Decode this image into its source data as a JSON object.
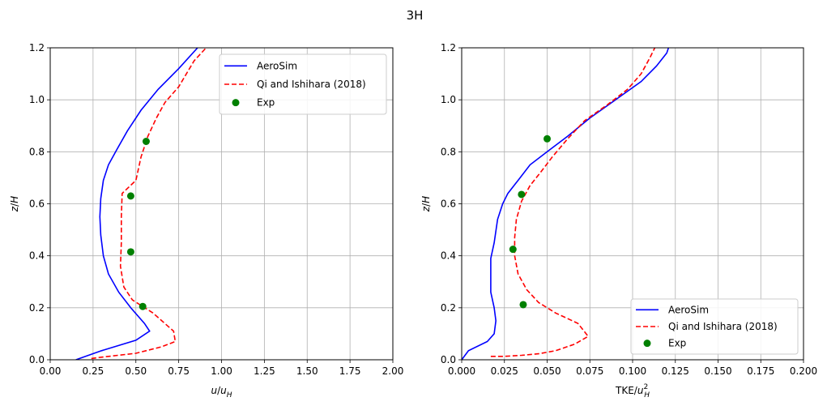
{
  "figure": {
    "suptitle": "3H"
  },
  "chart_data": [
    {
      "type": "line",
      "xlabel": "u/u_H",
      "ylabel": "z/H",
      "xlim": [
        0,
        2.0
      ],
      "ylim": [
        0,
        1.2
      ],
      "xticks": [
        "0.00",
        "0.25",
        "0.50",
        "0.75",
        "1.00",
        "1.25",
        "1.50",
        "1.75",
        "2.00"
      ],
      "xtick_values": [
        0,
        0.25,
        0.5,
        0.75,
        1.0,
        1.25,
        1.5,
        1.75,
        2.0
      ],
      "yticks": [
        "0.0",
        "0.2",
        "0.4",
        "0.6",
        "0.8",
        "1.0",
        "1.2"
      ],
      "ytick_values": [
        0,
        0.2,
        0.4,
        0.6,
        0.8,
        1.0,
        1.2
      ],
      "grid": true,
      "legend_position": "top-right",
      "series": [
        {
          "name": "AeroSim",
          "style": "solid",
          "color": "#0000ff",
          "points": [
            [
              0.15,
              0.0
            ],
            [
              0.3,
              0.035
            ],
            [
              0.5,
              0.075
            ],
            [
              0.58,
              0.11
            ],
            [
              0.55,
              0.14
            ],
            [
              0.47,
              0.2
            ],
            [
              0.4,
              0.26
            ],
            [
              0.34,
              0.33
            ],
            [
              0.31,
              0.4
            ],
            [
              0.295,
              0.48
            ],
            [
              0.29,
              0.55
            ],
            [
              0.295,
              0.62
            ],
            [
              0.31,
              0.69
            ],
            [
              0.34,
              0.75
            ],
            [
              0.39,
              0.81
            ],
            [
              0.45,
              0.88
            ],
            [
              0.53,
              0.96
            ],
            [
              0.63,
              1.04
            ],
            [
              0.75,
              1.12
            ],
            [
              0.86,
              1.2
            ]
          ]
        },
        {
          "name": "Qi and Ishihara (2018)",
          "style": "dashed",
          "color": "#ff0000",
          "points": [
            [
              0.24,
              0.005
            ],
            [
              0.3,
              0.01
            ],
            [
              0.5,
              0.025
            ],
            [
              0.65,
              0.05
            ],
            [
              0.73,
              0.07
            ],
            [
              0.72,
              0.11
            ],
            [
              0.6,
              0.18
            ],
            [
              0.48,
              0.23
            ],
            [
              0.43,
              0.28
            ],
            [
              0.41,
              0.36
            ],
            [
              0.415,
              0.45
            ],
            [
              0.415,
              0.55
            ],
            [
              0.42,
              0.64
            ],
            [
              0.5,
              0.69
            ],
            [
              0.53,
              0.78
            ],
            [
              0.57,
              0.86
            ],
            [
              0.62,
              0.93
            ],
            [
              0.67,
              0.99
            ],
            [
              0.75,
              1.05
            ],
            [
              0.84,
              1.15
            ],
            [
              0.91,
              1.2
            ]
          ]
        },
        {
          "name": "Exp",
          "style": "marker",
          "color": "#008000",
          "points": [
            [
              0.54,
              0.205
            ],
            [
              0.47,
              0.415
            ],
            [
              0.47,
              0.63
            ],
            [
              0.56,
              0.84
            ]
          ]
        }
      ]
    },
    {
      "type": "line",
      "xlabel": "TKE/u_H^2",
      "ylabel": "z/H",
      "xlim": [
        0,
        0.2
      ],
      "ylim": [
        0,
        1.2
      ],
      "xticks": [
        "0.000",
        "0.025",
        "0.050",
        "0.075",
        "0.100",
        "0.125",
        "0.150",
        "0.175",
        "0.200"
      ],
      "xtick_values": [
        0,
        0.025,
        0.05,
        0.075,
        0.1,
        0.125,
        0.15,
        0.175,
        0.2
      ],
      "yticks": [
        "0.0",
        "0.2",
        "0.4",
        "0.6",
        "0.8",
        "1.0",
        "1.2"
      ],
      "ytick_values": [
        0,
        0.2,
        0.4,
        0.6,
        0.8,
        1.0,
        1.2
      ],
      "grid": true,
      "legend_position": "bottom-right",
      "series": [
        {
          "name": "AeroSim",
          "style": "solid",
          "color": "#0000ff",
          "points": [
            [
              0.0,
              0.0
            ],
            [
              0.004,
              0.035
            ],
            [
              0.015,
              0.07
            ],
            [
              0.019,
              0.1
            ],
            [
              0.02,
              0.15
            ],
            [
              0.019,
              0.2
            ],
            [
              0.017,
              0.26
            ],
            [
              0.017,
              0.33
            ],
            [
              0.017,
              0.39
            ],
            [
              0.019,
              0.45
            ],
            [
              0.021,
              0.54
            ],
            [
              0.024,
              0.6
            ],
            [
              0.027,
              0.64
            ],
            [
              0.033,
              0.69
            ],
            [
              0.04,
              0.75
            ],
            [
              0.05,
              0.8
            ],
            [
              0.062,
              0.86
            ],
            [
              0.075,
              0.93
            ],
            [
              0.09,
              1.0
            ],
            [
              0.105,
              1.07
            ],
            [
              0.114,
              1.13
            ],
            [
              0.12,
              1.18
            ],
            [
              0.121,
              1.2
            ]
          ]
        },
        {
          "name": "Qi and Ishihara (2018)",
          "style": "dashed",
          "color": "#ff0000",
          "points": [
            [
              0.017,
              0.013
            ],
            [
              0.025,
              0.013
            ],
            [
              0.035,
              0.017
            ],
            [
              0.045,
              0.023
            ],
            [
              0.055,
              0.035
            ],
            [
              0.066,
              0.06
            ],
            [
              0.074,
              0.09
            ],
            [
              0.068,
              0.14
            ],
            [
              0.055,
              0.18
            ],
            [
              0.045,
              0.22
            ],
            [
              0.038,
              0.27
            ],
            [
              0.033,
              0.33
            ],
            [
              0.031,
              0.4
            ],
            [
              0.031,
              0.47
            ],
            [
              0.032,
              0.54
            ],
            [
              0.035,
              0.61
            ],
            [
              0.04,
              0.67
            ],
            [
              0.046,
              0.72
            ],
            [
              0.053,
              0.78
            ],
            [
              0.062,
              0.85
            ],
            [
              0.072,
              0.92
            ],
            [
              0.085,
              0.98
            ],
            [
              0.097,
              1.04
            ],
            [
              0.105,
              1.1
            ],
            [
              0.11,
              1.16
            ],
            [
              0.113,
              1.2
            ]
          ]
        },
        {
          "name": "Exp",
          "style": "marker",
          "color": "#008000",
          "points": [
            [
              0.036,
              0.212
            ],
            [
              0.03,
              0.425
            ],
            [
              0.035,
              0.636
            ],
            [
              0.05,
              0.85
            ]
          ]
        }
      ]
    }
  ]
}
